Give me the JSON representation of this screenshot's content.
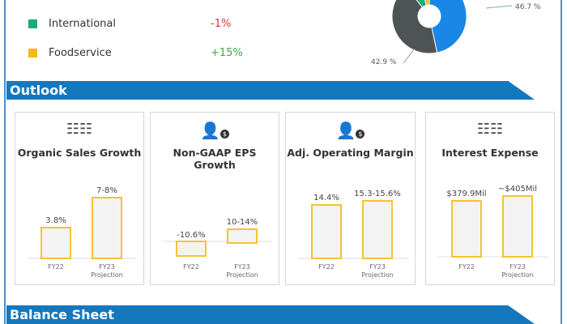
{
  "legend": [
    {
      "label": "International",
      "value": "-1%",
      "color": "#1aaa7a",
      "value_color": "#d03a3a"
    },
    {
      "label": "Foodservice",
      "value": "+15%",
      "color": "#f4b820",
      "value_color": "#3aaa3a"
    }
  ],
  "donut": {
    "labels": [
      "46.7 %",
      "42.9 %"
    ]
  },
  "outlook_title": "Outlook",
  "balance_title": "Balance Sheet",
  "chart_data": [
    {
      "type": "bar",
      "title": "Organic Sales Growth",
      "categories": [
        "FY22",
        "FY23 Projection"
      ],
      "values": [
        3.8,
        7.5
      ],
      "data_labels": [
        "3.8%",
        "7-8%"
      ]
    },
    {
      "type": "bar",
      "title": "Non-GAAP EPS Growth",
      "categories": [
        "FY22",
        "FY23 Projection"
      ],
      "values": [
        -10.6,
        12
      ],
      "data_labels": [
        "-10.6%",
        "10-14%"
      ]
    },
    {
      "type": "bar",
      "title": "Adj. Operating Margin",
      "categories": [
        "FY22",
        "FY23 Projection"
      ],
      "values": [
        14.4,
        15.45
      ],
      "data_labels": [
        "14.4%",
        "15.3-15.6%"
      ]
    },
    {
      "type": "bar",
      "title": "Interest Expense",
      "categories": [
        "FY22",
        "FY23 Projection"
      ],
      "values": [
        379.9,
        405
      ],
      "data_labels": [
        "$379.9Mil",
        "~$405Mil"
      ]
    }
  ],
  "colors": {
    "bar_stroke": "#f4c430",
    "bar_fill": "#f3f3f3",
    "banner": "#1578bd"
  }
}
